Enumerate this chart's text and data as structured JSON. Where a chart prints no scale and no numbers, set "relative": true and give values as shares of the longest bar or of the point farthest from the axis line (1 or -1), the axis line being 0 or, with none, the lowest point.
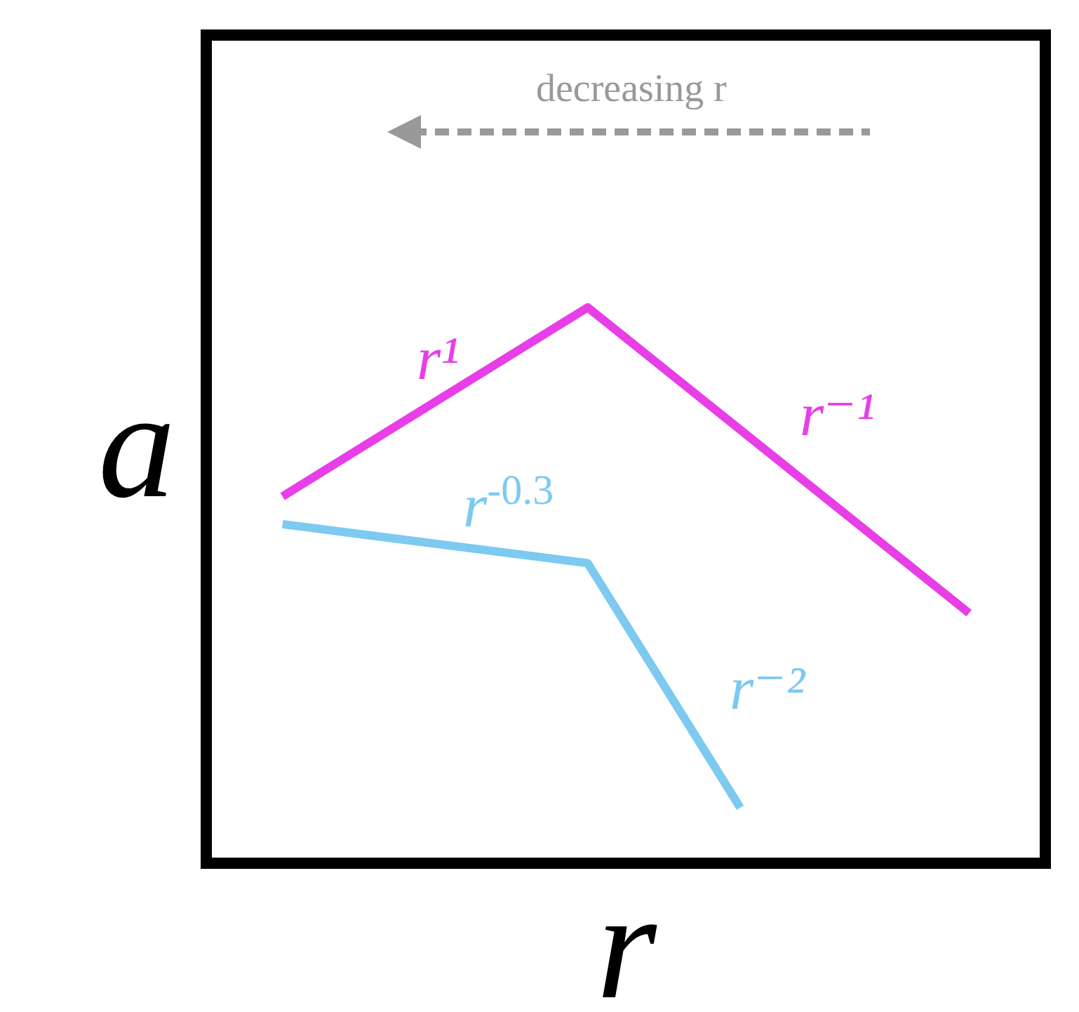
{
  "chart_data": {
    "type": "line",
    "relative": true,
    "xlabel": "r",
    "ylabel": "a",
    "categories": [
      null,
      null,
      null,
      null,
      null,
      null,
      null,
      null,
      null,
      null
    ],
    "series": [
      {
        "color": "#e83ee8",
        "values": [
          0.66,
          null,
          null,
          null,
          1,
          null,
          null,
          null,
          null,
          0.45
        ]
      },
      {
        "color": "#7dcaf0",
        "values": [
          0.61,
          null,
          null,
          null,
          0.54,
          null,
          0.1,
          null,
          null,
          null
        ]
      }
    ],
    "annotations": [
      "decreasing r",
      "r¹",
      "r⁻¹",
      "r$^{-0.3}$",
      "r⁻²"
    ]
  }
}
